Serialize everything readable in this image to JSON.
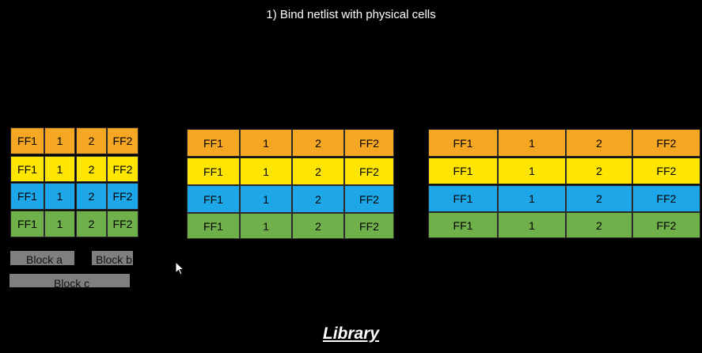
{
  "title": "1) Bind netlist with physical cells",
  "rows": [
    {
      "color": "orange",
      "cells": [
        "FF1",
        "1",
        "2",
        "FF2"
      ]
    },
    {
      "color": "yellow",
      "cells": [
        "FF1",
        "1",
        "2",
        "FF2"
      ]
    },
    {
      "color": "blue",
      "cells": [
        "FF1",
        "1",
        "2",
        "FF2"
      ]
    },
    {
      "color": "green",
      "cells": [
        "FF1",
        "1",
        "2",
        "FF2"
      ]
    }
  ],
  "blocks": [
    "Block a",
    "Block b",
    "Block c"
  ],
  "footer": "Library"
}
